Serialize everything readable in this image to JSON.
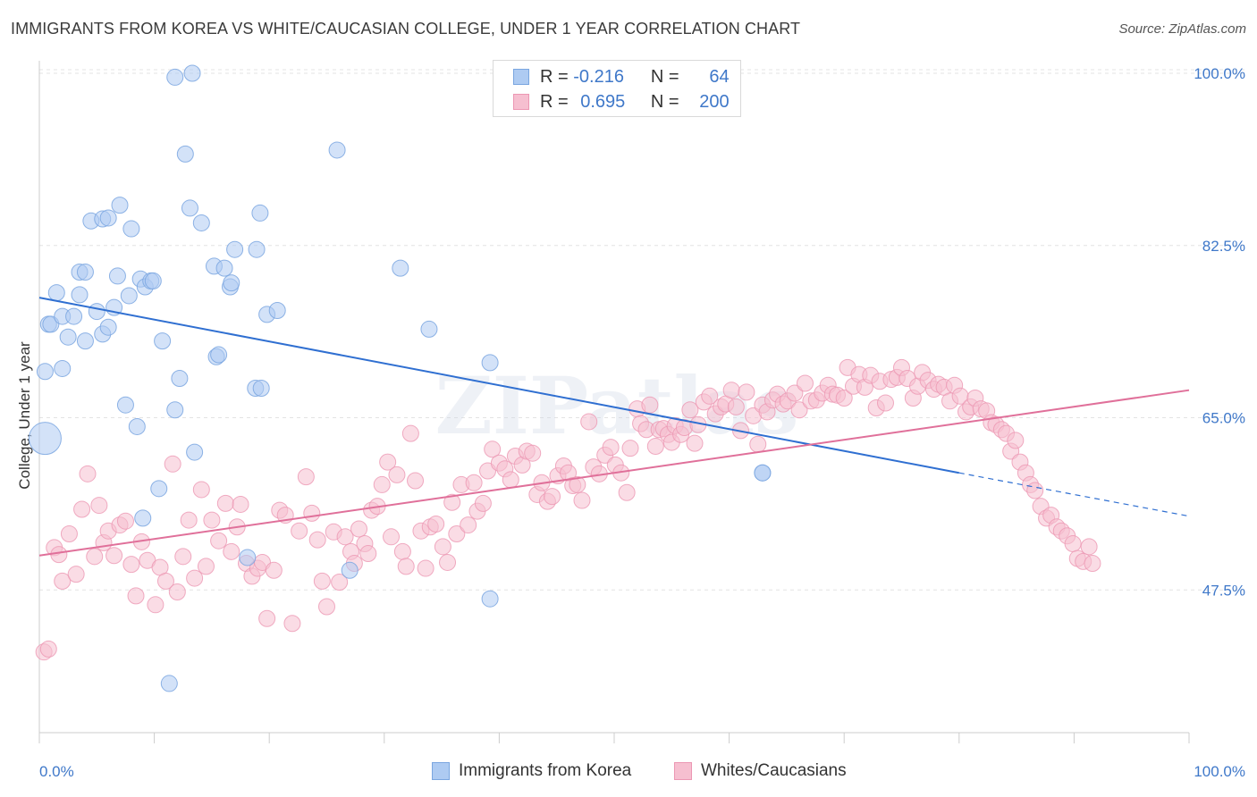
{
  "header": {
    "title": "IMMIGRANTS FROM KOREA VS WHITE/CAUCASIAN COLLEGE, UNDER 1 YEAR CORRELATION CHART",
    "source": "Source: ZipAtlas.com"
  },
  "legend": {
    "rows": [
      {
        "r_label": "R =",
        "r_value": "-0.216",
        "n_label": "N =",
        "n_value": "64"
      },
      {
        "r_label": "R =",
        "r_value": "0.695",
        "n_label": "N =",
        "n_value": "200"
      }
    ]
  },
  "watermark": "ZIPatlas",
  "colors": {
    "korea_fill": "#aecbf2",
    "korea_stroke": "#7aa6e0",
    "korea_line": "#2f6fd1",
    "white_fill": "#f6bfd0",
    "white_stroke": "#ec97b3",
    "white_line": "#e0709a",
    "tick": "#3f78c9",
    "grid": "#e3e3e3"
  },
  "chart_data": {
    "type": "scatter",
    "title": "IMMIGRANTS FROM KOREA VS WHITE/CAUCASIAN COLLEGE, UNDER 1 YEAR CORRELATION CHART",
    "xlabel": "",
    "ylabel": "College, Under 1 year",
    "xlim": [
      0,
      100
    ],
    "ylim": [
      33,
      102
    ],
    "x_ticks": [
      "0.0%",
      "100.0%"
    ],
    "y_ticks": [
      {
        "value": 47.5,
        "label": "47.5%"
      },
      {
        "value": 65.0,
        "label": "65.0%"
      },
      {
        "value": 82.5,
        "label": "82.5%"
      },
      {
        "value": 100.0,
        "label": "100.0%"
      }
    ],
    "grid": true,
    "legend_position": "top-center",
    "series": [
      {
        "name": "Immigrants from Korea",
        "r": -0.216,
        "n": 64,
        "trend": {
          "x0": 0,
          "y0": 77.2,
          "x1": 80,
          "y1": 59.4,
          "dash_to_x": 100,
          "dash_to_y": 55.0
        },
        "points": [
          [
            0.5,
            62.9
          ],
          [
            0.5,
            69.7
          ],
          [
            0.8,
            74.5
          ],
          [
            1.0,
            74.5
          ],
          [
            1.5,
            77.7
          ],
          [
            2.0,
            70.0
          ],
          [
            2.0,
            75.3
          ],
          [
            2.5,
            73.2
          ],
          [
            3.0,
            75.3
          ],
          [
            3.5,
            77.5
          ],
          [
            3.5,
            79.8
          ],
          [
            4.0,
            72.8
          ],
          [
            4.0,
            79.8
          ],
          [
            4.5,
            85.0
          ],
          [
            5.0,
            75.8
          ],
          [
            5.5,
            73.5
          ],
          [
            5.5,
            85.2
          ],
          [
            6.0,
            74.2
          ],
          [
            6.0,
            85.3
          ],
          [
            6.5,
            76.2
          ],
          [
            6.8,
            79.4
          ],
          [
            7.0,
            86.6
          ],
          [
            7.5,
            66.3
          ],
          [
            7.8,
            77.4
          ],
          [
            8.0,
            84.2
          ],
          [
            8.5,
            64.1
          ],
          [
            8.8,
            79.1
          ],
          [
            9.0,
            54.8
          ],
          [
            9.2,
            78.3
          ],
          [
            9.7,
            78.9
          ],
          [
            9.9,
            78.9
          ],
          [
            10.4,
            57.8
          ],
          [
            10.7,
            72.8
          ],
          [
            11.3,
            38.0
          ],
          [
            11.8,
            65.8
          ],
          [
            11.8,
            99.6
          ],
          [
            12.2,
            69.0
          ],
          [
            12.7,
            91.8
          ],
          [
            13.1,
            86.3
          ],
          [
            13.3,
            100.0
          ],
          [
            13.5,
            61.5
          ],
          [
            14.1,
            84.8
          ],
          [
            15.2,
            80.4
          ],
          [
            15.4,
            71.2
          ],
          [
            15.6,
            71.4
          ],
          [
            16.1,
            80.2
          ],
          [
            16.6,
            78.3
          ],
          [
            16.7,
            78.7
          ],
          [
            17.0,
            82.1
          ],
          [
            18.1,
            50.8
          ],
          [
            18.8,
            68.0
          ],
          [
            18.9,
            82.1
          ],
          [
            19.2,
            85.8
          ],
          [
            19.3,
            68.0
          ],
          [
            19.8,
            75.5
          ],
          [
            20.7,
            75.9
          ],
          [
            25.9,
            92.2
          ],
          [
            27.0,
            49.5
          ],
          [
            31.4,
            80.2
          ],
          [
            33.9,
            74.0
          ],
          [
            39.2,
            70.6
          ],
          [
            39.2,
            46.6
          ],
          [
            62.9,
            59.4
          ],
          [
            62.9,
            59.4
          ]
        ]
      },
      {
        "name": "Whites/Caucasians",
        "r": 0.695,
        "n": 200,
        "trend": {
          "x0": 0,
          "y0": 51.0,
          "x1": 100,
          "y1": 67.8
        },
        "points": [
          [
            0.4,
            41.2
          ],
          [
            0.8,
            41.5
          ],
          [
            1.3,
            51.8
          ],
          [
            1.7,
            51.1
          ],
          [
            2.0,
            48.4
          ],
          [
            2.6,
            53.2
          ],
          [
            3.2,
            49.1
          ],
          [
            3.7,
            55.7
          ],
          [
            4.2,
            59.3
          ],
          [
            4.8,
            50.9
          ],
          [
            5.2,
            56.1
          ],
          [
            5.6,
            52.3
          ],
          [
            6.0,
            53.5
          ],
          [
            6.5,
            51.0
          ],
          [
            7.0,
            54.1
          ],
          [
            7.5,
            54.5
          ],
          [
            8.0,
            50.1
          ],
          [
            8.4,
            46.9
          ],
          [
            8.9,
            52.4
          ],
          [
            9.4,
            50.5
          ],
          [
            10.1,
            46.0
          ],
          [
            10.5,
            49.8
          ],
          [
            11.0,
            48.4
          ],
          [
            11.6,
            60.3
          ],
          [
            12.0,
            47.3
          ],
          [
            12.5,
            50.9
          ],
          [
            13.0,
            54.6
          ],
          [
            13.5,
            48.7
          ],
          [
            14.1,
            57.7
          ],
          [
            14.5,
            49.9
          ],
          [
            15.0,
            54.6
          ],
          [
            15.6,
            52.5
          ],
          [
            16.2,
            56.3
          ],
          [
            16.7,
            51.4
          ],
          [
            17.2,
            53.9
          ],
          [
            17.5,
            56.2
          ],
          [
            18.0,
            50.2
          ],
          [
            18.5,
            48.9
          ],
          [
            19.0,
            49.7
          ],
          [
            19.4,
            50.3
          ],
          [
            19.8,
            44.6
          ],
          [
            20.4,
            49.5
          ],
          [
            20.9,
            55.6
          ],
          [
            21.4,
            55.1
          ],
          [
            22.0,
            44.1
          ],
          [
            22.6,
            53.5
          ],
          [
            23.2,
            59.0
          ],
          [
            23.7,
            55.3
          ],
          [
            24.2,
            52.6
          ],
          [
            24.6,
            48.4
          ],
          [
            25.0,
            45.8
          ],
          [
            25.6,
            53.4
          ],
          [
            26.1,
            48.3
          ],
          [
            26.6,
            52.9
          ],
          [
            27.1,
            51.4
          ],
          [
            27.4,
            50.2
          ],
          [
            27.8,
            53.7
          ],
          [
            28.3,
            52.2
          ],
          [
            28.6,
            51.2
          ],
          [
            28.9,
            55.6
          ],
          [
            29.4,
            56.0
          ],
          [
            29.8,
            58.2
          ],
          [
            30.3,
            60.5
          ],
          [
            30.6,
            52.9
          ],
          [
            31.1,
            59.2
          ],
          [
            31.6,
            51.4
          ],
          [
            31.9,
            49.9
          ],
          [
            32.3,
            63.4
          ],
          [
            32.7,
            58.6
          ],
          [
            33.2,
            53.5
          ],
          [
            33.6,
            49.7
          ],
          [
            34.0,
            53.9
          ],
          [
            34.5,
            54.2
          ],
          [
            35.1,
            51.9
          ],
          [
            35.5,
            50.3
          ],
          [
            35.9,
            56.4
          ],
          [
            36.3,
            53.2
          ],
          [
            36.7,
            58.2
          ],
          [
            37.3,
            54.1
          ],
          [
            37.8,
            58.4
          ],
          [
            38.1,
            55.5
          ],
          [
            38.6,
            56.3
          ],
          [
            39.0,
            59.6
          ],
          [
            39.4,
            61.8
          ],
          [
            40.0,
            60.4
          ],
          [
            40.5,
            59.8
          ],
          [
            41.0,
            58.7
          ],
          [
            41.4,
            61.1
          ],
          [
            42.0,
            60.2
          ],
          [
            42.4,
            61.6
          ],
          [
            42.9,
            61.4
          ],
          [
            43.3,
            57.2
          ],
          [
            43.7,
            58.4
          ],
          [
            44.2,
            56.5
          ],
          [
            44.6,
            57.0
          ],
          [
            45.1,
            59.1
          ],
          [
            45.6,
            60.1
          ],
          [
            46.0,
            59.4
          ],
          [
            46.4,
            58.1
          ],
          [
            46.8,
            58.2
          ],
          [
            47.2,
            56.6
          ],
          [
            47.8,
            64.6
          ],
          [
            48.2,
            60.0
          ],
          [
            48.7,
            59.3
          ],
          [
            49.2,
            61.2
          ],
          [
            49.7,
            62.0
          ],
          [
            50.1,
            60.2
          ],
          [
            50.6,
            59.4
          ],
          [
            51.1,
            57.4
          ],
          [
            51.4,
            61.9
          ],
          [
            52.0,
            65.9
          ],
          [
            52.3,
            64.4
          ],
          [
            52.8,
            63.8
          ],
          [
            53.1,
            66.3
          ],
          [
            53.6,
            62.1
          ],
          [
            53.9,
            63.8
          ],
          [
            54.3,
            63.9
          ],
          [
            54.7,
            63.3
          ],
          [
            55.0,
            62.5
          ],
          [
            55.3,
            64.2
          ],
          [
            55.8,
            63.3
          ],
          [
            56.1,
            64.0
          ],
          [
            56.6,
            65.8
          ],
          [
            57.0,
            62.4
          ],
          [
            57.3,
            64.3
          ],
          [
            57.8,
            66.6
          ],
          [
            58.3,
            67.2
          ],
          [
            58.8,
            65.4
          ],
          [
            59.3,
            66.1
          ],
          [
            59.7,
            66.4
          ],
          [
            60.2,
            67.8
          ],
          [
            60.6,
            66.1
          ],
          [
            61.0,
            63.7
          ],
          [
            61.5,
            67.6
          ],
          [
            62.1,
            65.2
          ],
          [
            62.5,
            62.3
          ],
          [
            62.9,
            66.3
          ],
          [
            63.3,
            65.6
          ],
          [
            63.8,
            66.8
          ],
          [
            64.2,
            67.4
          ],
          [
            64.7,
            66.4
          ],
          [
            65.1,
            66.7
          ],
          [
            65.7,
            67.5
          ],
          [
            66.1,
            65.8
          ],
          [
            66.6,
            68.5
          ],
          [
            67.1,
            66.7
          ],
          [
            67.6,
            66.8
          ],
          [
            68.1,
            67.5
          ],
          [
            68.6,
            68.3
          ],
          [
            69.0,
            67.4
          ],
          [
            69.4,
            67.3
          ],
          [
            70.0,
            67.0
          ],
          [
            70.3,
            70.1
          ],
          [
            70.8,
            68.2
          ],
          [
            71.3,
            69.4
          ],
          [
            71.8,
            68.1
          ],
          [
            72.3,
            69.3
          ],
          [
            72.8,
            66.0
          ],
          [
            73.1,
            68.7
          ],
          [
            73.6,
            66.5
          ],
          [
            74.1,
            68.9
          ],
          [
            74.6,
            69.1
          ],
          [
            75.0,
            70.1
          ],
          [
            75.5,
            69.0
          ],
          [
            76.0,
            67.0
          ],
          [
            76.4,
            68.2
          ],
          [
            76.8,
            69.6
          ],
          [
            77.3,
            68.8
          ],
          [
            77.8,
            67.9
          ],
          [
            78.2,
            68.4
          ],
          [
            78.7,
            68.1
          ],
          [
            79.2,
            66.7
          ],
          [
            79.6,
            68.3
          ],
          [
            80.1,
            67.2
          ],
          [
            80.6,
            65.6
          ],
          [
            81.0,
            66.1
          ],
          [
            81.4,
            67.0
          ],
          [
            81.9,
            65.9
          ],
          [
            82.4,
            65.7
          ],
          [
            82.8,
            64.5
          ],
          [
            83.2,
            64.3
          ],
          [
            83.7,
            63.8
          ],
          [
            84.1,
            63.4
          ],
          [
            84.5,
            61.6
          ],
          [
            84.9,
            62.7
          ],
          [
            85.3,
            60.5
          ],
          [
            85.8,
            59.4
          ],
          [
            86.2,
            58.2
          ],
          [
            86.6,
            57.6
          ],
          [
            87.1,
            56.0
          ],
          [
            87.6,
            54.8
          ],
          [
            88.0,
            55.1
          ],
          [
            88.5,
            53.9
          ],
          [
            88.9,
            53.5
          ],
          [
            89.4,
            53.0
          ],
          [
            89.9,
            52.2
          ],
          [
            90.3,
            50.7
          ],
          [
            90.8,
            50.4
          ],
          [
            91.3,
            51.9
          ],
          [
            91.6,
            50.2
          ]
        ]
      }
    ]
  },
  "bottom_legend": {
    "items": [
      {
        "label": "Immigrants from Korea"
      },
      {
        "label": "Whites/Caucasians"
      }
    ]
  }
}
